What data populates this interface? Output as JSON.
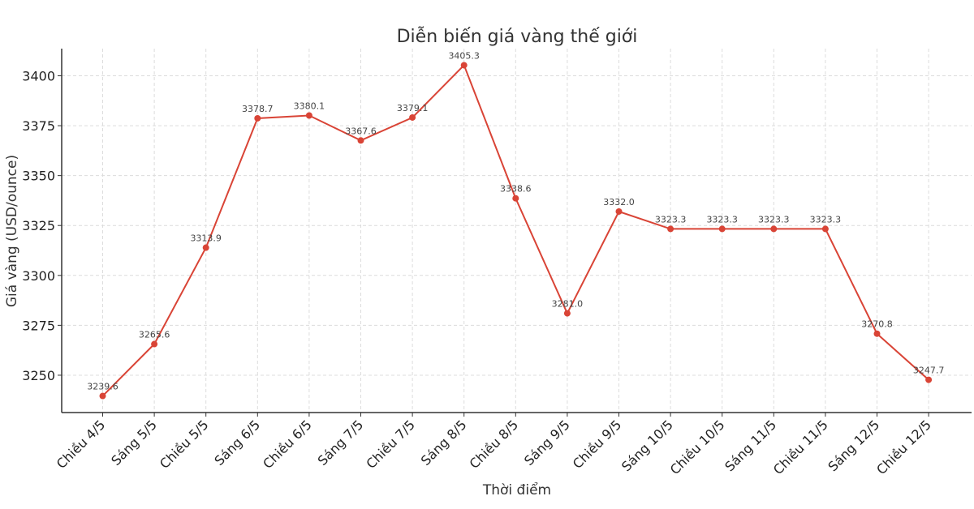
{
  "chart_data": {
    "type": "line",
    "title": "Diễn biến giá vàng thế giới",
    "xlabel": "Thời điểm",
    "ylabel": "Giá vàng (USD/ounce)",
    "categories": [
      "Chiều 4/5",
      "Sáng 5/5",
      "Chiều 5/5",
      "Sáng 6/5",
      "Chiều 6/5",
      "Sáng 7/5",
      "Chiều 7/5",
      "Sáng 8/5",
      "Chiều 8/5",
      "Sáng 9/5",
      "Chiều 9/5",
      "Sáng 10/5",
      "Chiều 10/5",
      "Sáng 11/5",
      "Chiều 11/5",
      "Sáng 12/5",
      "Chiều 12/5"
    ],
    "values": [
      3239.6,
      3265.6,
      3313.9,
      3378.7,
      3380.1,
      3367.6,
      3379.1,
      3405.3,
      3338.6,
      3281.0,
      3332.0,
      3323.3,
      3323.3,
      3323.3,
      3323.3,
      3270.8,
      3247.7
    ],
    "data_labels": [
      "3239.6",
      "3265.6",
      "3313.9",
      "3378.7",
      "3380.1",
      "3367.6",
      "3379.1",
      "3405.3",
      "3338.6",
      "3281.0",
      "3332.0",
      "3323.3",
      "3323.3",
      "3323.3",
      "3323.3",
      "3270.8",
      "3247.7"
    ],
    "yticks": [
      3250,
      3275,
      3300,
      3325,
      3350,
      3375,
      3400
    ],
    "ylim": [
      3231.3,
      3413.6
    ],
    "grid": true,
    "line_color": "#d94436",
    "marker_color": "#d94436"
  }
}
